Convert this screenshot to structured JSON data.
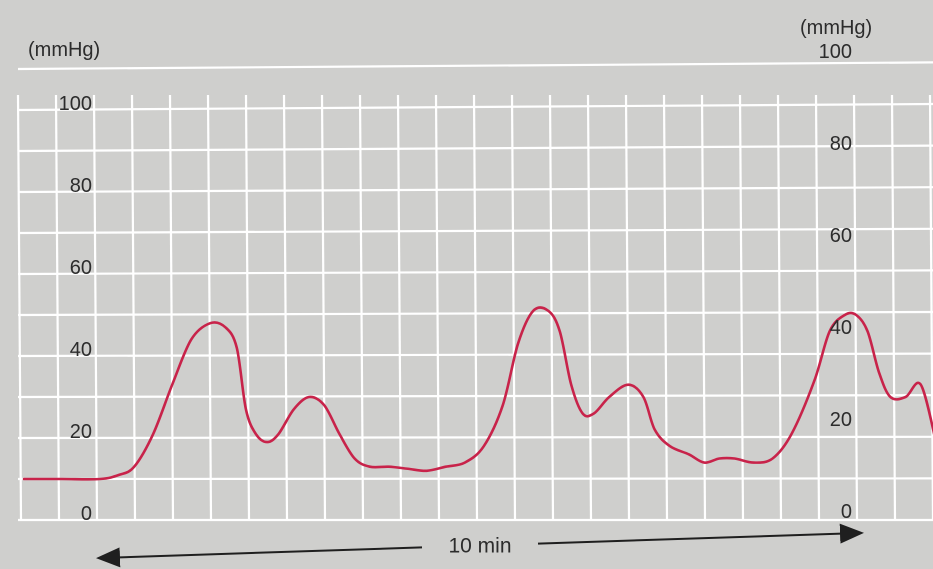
{
  "chart_data": {
    "type": "line",
    "title": "",
    "xlabel": "10 min",
    "left_axis": {
      "unit": "(mmHg)",
      "ticks": [
        0,
        20,
        40,
        60,
        80,
        100
      ],
      "ylim": [
        0,
        100
      ]
    },
    "right_axis": {
      "unit": "(mmHg)",
      "ticks": [
        0,
        20,
        40,
        60,
        80,
        100
      ],
      "ylim": [
        0,
        100
      ]
    },
    "x_unit": "min",
    "xlim": [
      -1.0,
      11.0
    ],
    "duration_arrow": {
      "label": "10 min",
      "from": 0,
      "to": 10
    },
    "grid": true,
    "series": [
      {
        "color": "#c8234a",
        "points": [
          [
            -1.0,
            10
          ],
          [
            -0.5,
            10
          ],
          [
            0.0,
            10
          ],
          [
            0.25,
            11
          ],
          [
            0.45,
            13
          ],
          [
            0.7,
            21
          ],
          [
            0.95,
            33
          ],
          [
            1.2,
            44
          ],
          [
            1.45,
            48
          ],
          [
            1.65,
            47
          ],
          [
            1.8,
            42
          ],
          [
            1.92,
            27
          ],
          [
            2.05,
            21
          ],
          [
            2.2,
            19
          ],
          [
            2.35,
            21
          ],
          [
            2.55,
            27
          ],
          [
            2.75,
            30
          ],
          [
            2.95,
            28
          ],
          [
            3.15,
            21
          ],
          [
            3.35,
            15
          ],
          [
            3.55,
            13
          ],
          [
            3.8,
            13
          ],
          [
            4.05,
            12.5
          ],
          [
            4.3,
            12
          ],
          [
            4.55,
            13
          ],
          [
            4.8,
            14
          ],
          [
            5.05,
            18
          ],
          [
            5.3,
            28
          ],
          [
            5.5,
            43
          ],
          [
            5.7,
            51
          ],
          [
            5.9,
            51
          ],
          [
            6.05,
            46
          ],
          [
            6.2,
            33
          ],
          [
            6.35,
            26
          ],
          [
            6.5,
            26
          ],
          [
            6.7,
            30
          ],
          [
            6.95,
            33
          ],
          [
            7.15,
            30
          ],
          [
            7.3,
            22
          ],
          [
            7.5,
            18
          ],
          [
            7.75,
            16
          ],
          [
            7.95,
            14
          ],
          [
            8.15,
            15
          ],
          [
            8.35,
            15
          ],
          [
            8.6,
            14
          ],
          [
            8.85,
            15
          ],
          [
            9.1,
            21
          ],
          [
            9.4,
            34
          ],
          [
            9.6,
            46
          ],
          [
            9.8,
            50
          ],
          [
            9.95,
            50
          ],
          [
            10.1,
            46
          ],
          [
            10.25,
            36
          ],
          [
            10.4,
            30
          ],
          [
            10.6,
            30
          ],
          [
            10.8,
            33
          ],
          [
            11.0,
            19
          ]
        ]
      }
    ]
  }
}
